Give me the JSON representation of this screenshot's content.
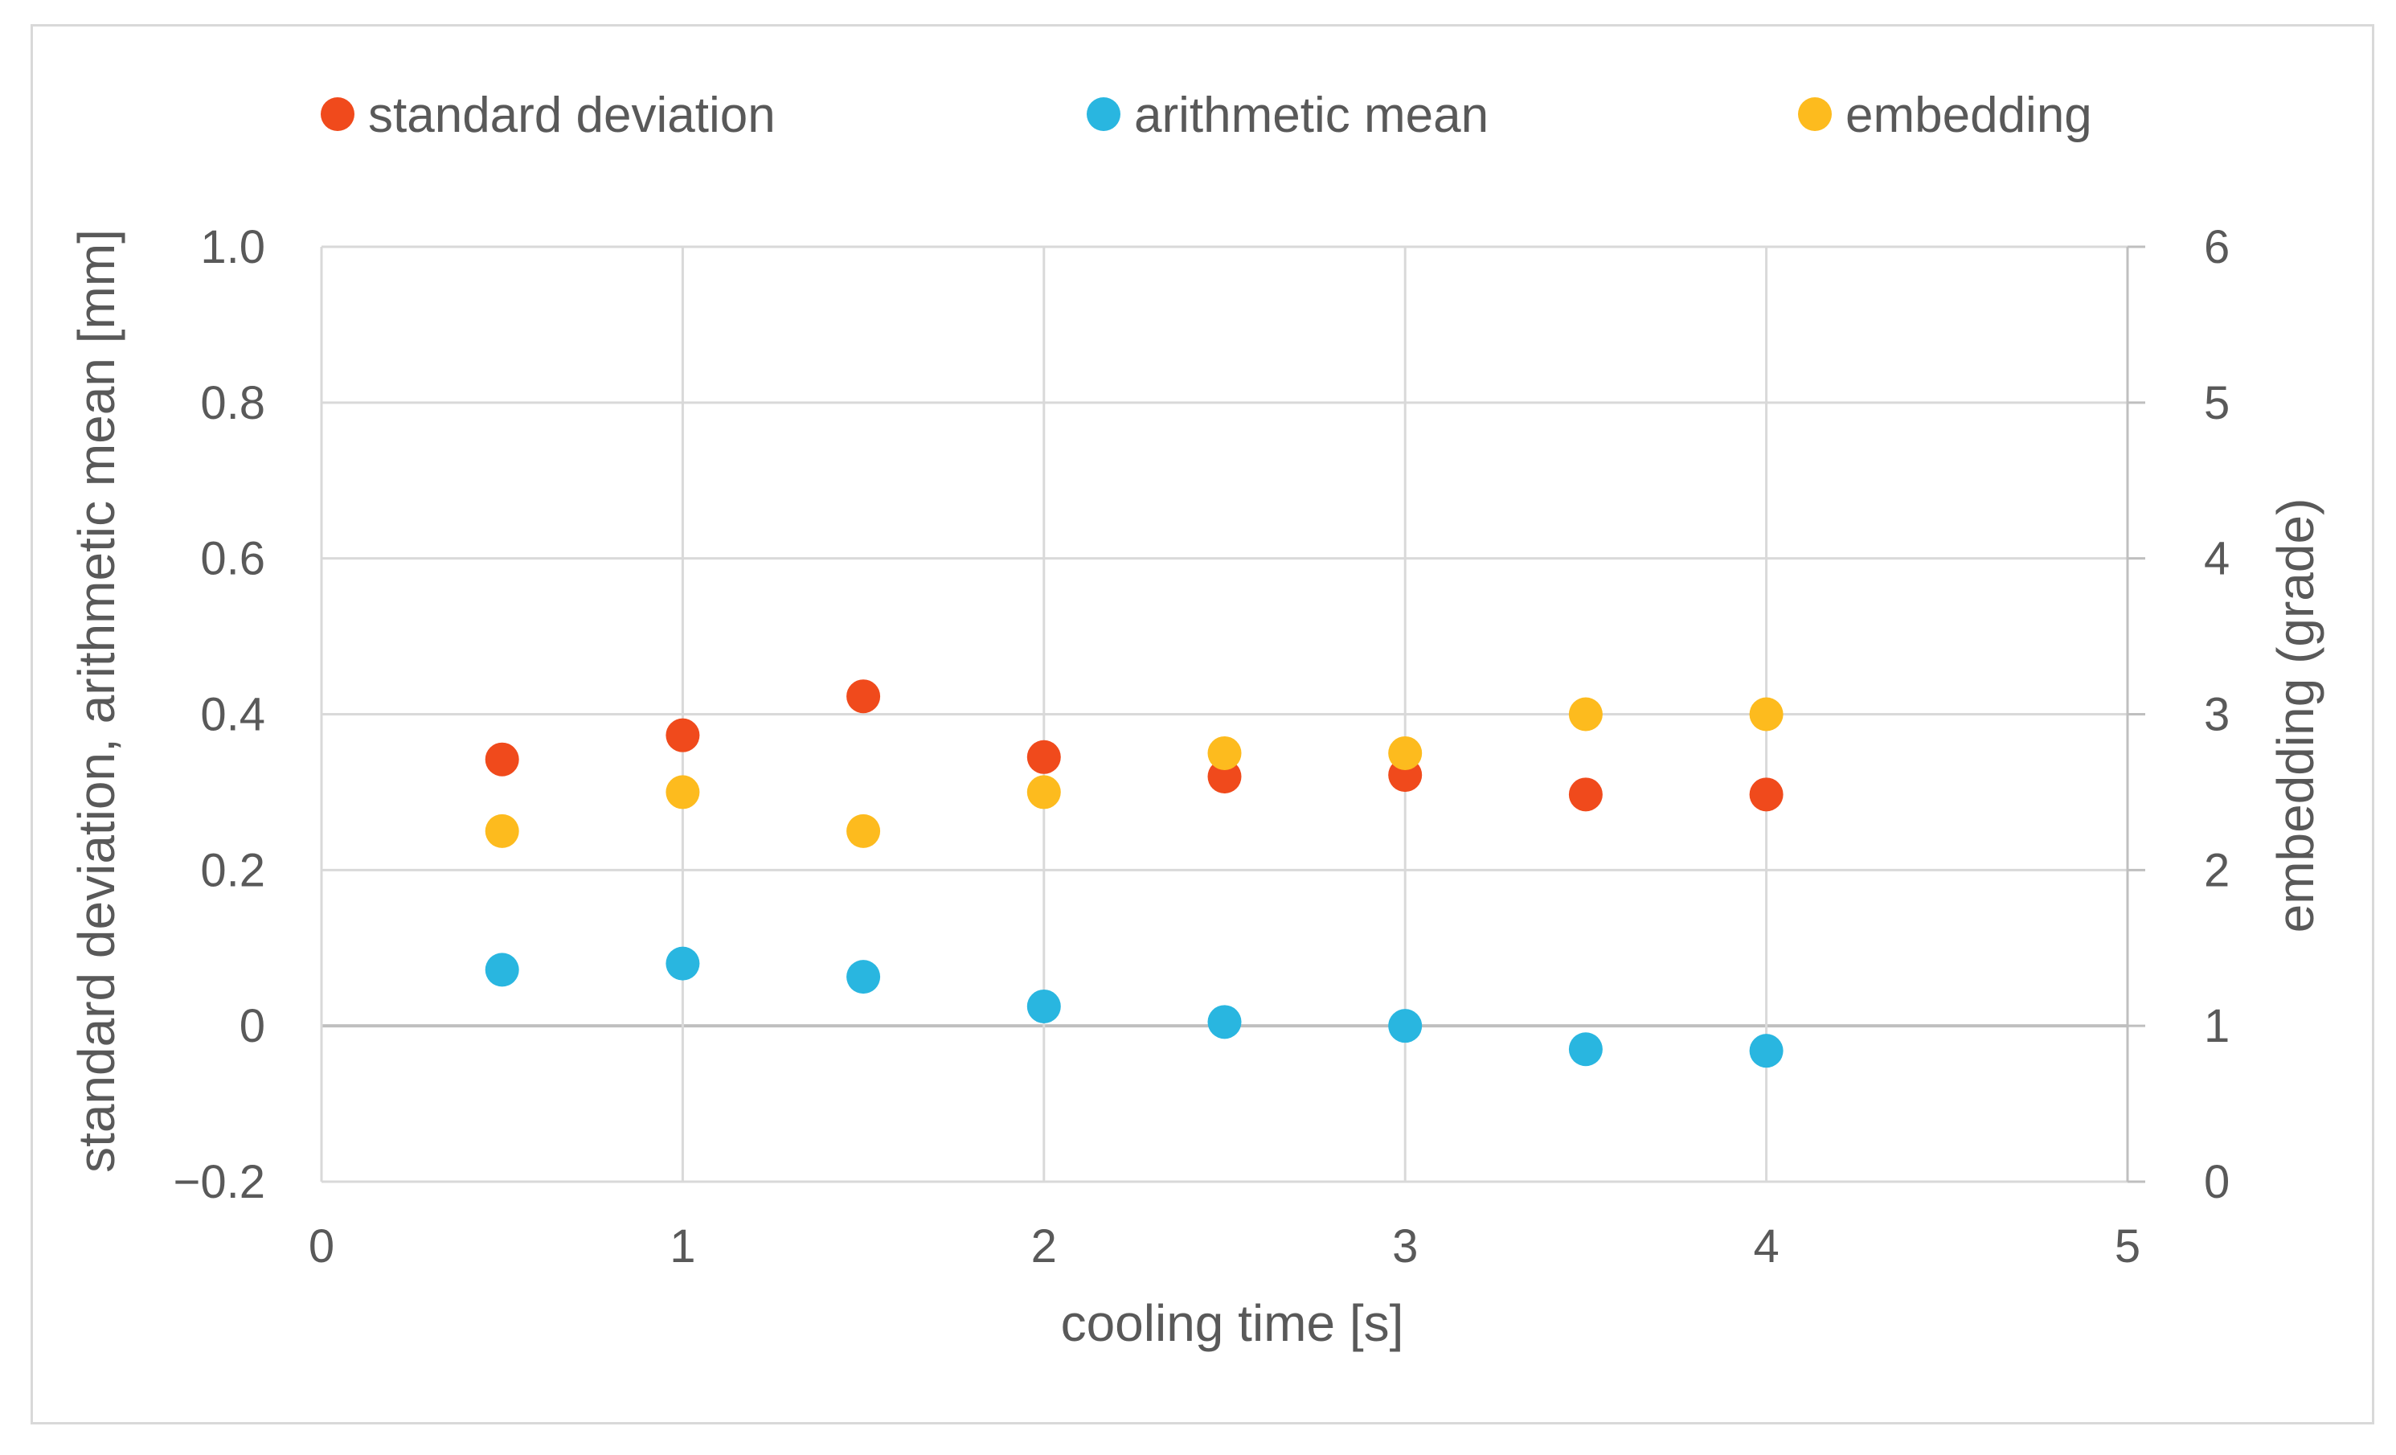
{
  "chart_data": {
    "type": "scatter",
    "title": "",
    "xlabel": "cooling time [s]",
    "ylabel": "standard deviation, arithmetic mean [mm]",
    "y2label": "embedding (grade)",
    "xlim": [
      0,
      5
    ],
    "ylim": [
      -0.2,
      1.0
    ],
    "y2lim": [
      0,
      6
    ],
    "grid": true,
    "legend_position": "top",
    "x_ticks": [
      {
        "value": 0,
        "label": "0"
      },
      {
        "value": 1,
        "label": "1"
      },
      {
        "value": 2,
        "label": "2"
      },
      {
        "value": 3,
        "label": "3"
      },
      {
        "value": 4,
        "label": "4"
      },
      {
        "value": 5,
        "label": "5"
      }
    ],
    "y_ticks": [
      {
        "value": -0.2,
        "label": "−0.2"
      },
      {
        "value": 0,
        "label": "0"
      },
      {
        "value": 0.2,
        "label": "0.2"
      },
      {
        "value": 0.4,
        "label": "0.4"
      },
      {
        "value": 0.6,
        "label": "0.6"
      },
      {
        "value": 0.8,
        "label": "0.8"
      },
      {
        "value": 1.0,
        "label": "1.0"
      }
    ],
    "y2_ticks": [
      {
        "value": 0,
        "label": "0"
      },
      {
        "value": 1,
        "label": "1"
      },
      {
        "value": 2,
        "label": "2"
      },
      {
        "value": 3,
        "label": "3"
      },
      {
        "value": 4,
        "label": "4"
      },
      {
        "value": 5,
        "label": "5"
      },
      {
        "value": 6,
        "label": "6"
      }
    ],
    "series": [
      {
        "name": "standard deviation",
        "axis": "left",
        "color": "#f04a1c",
        "x": [
          0.5,
          1.0,
          1.5,
          2.0,
          2.5,
          3.0,
          3.5,
          4.0
        ],
        "values": [
          0.342,
          0.373,
          0.423,
          0.345,
          0.32,
          0.322,
          0.297,
          0.297
        ]
      },
      {
        "name": "arithmetic mean",
        "axis": "left",
        "color": "#29b6e0",
        "x": [
          0.5,
          1.0,
          1.5,
          2.0,
          2.5,
          3.0,
          3.5,
          4.0
        ],
        "values": [
          0.072,
          0.08,
          0.063,
          0.025,
          0.005,
          0.0,
          -0.03,
          -0.032
        ]
      },
      {
        "name": "embedding",
        "axis": "right",
        "color": "#fdbb1e",
        "x": [
          0.5,
          1.0,
          1.5,
          2.0,
          2.5,
          3.0,
          3.5,
          4.0
        ],
        "values": [
          2.25,
          2.5,
          2.25,
          2.5,
          2.75,
          2.75,
          3.0,
          3.0
        ]
      }
    ]
  }
}
